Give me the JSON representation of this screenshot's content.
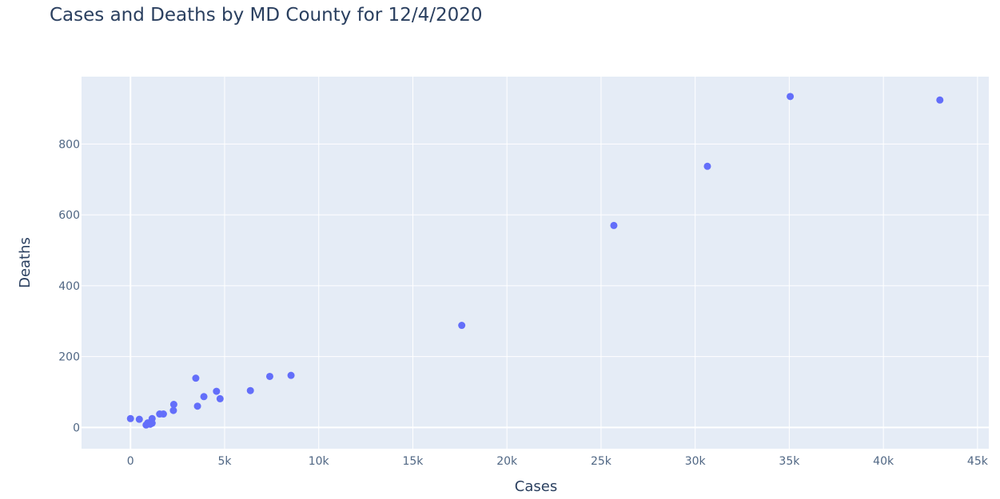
{
  "chart_data": {
    "type": "scatter",
    "title": "Cases and Deaths by MD County for 12/4/2020",
    "xlabel": "Cases",
    "ylabel": "Deaths",
    "xlim": [
      -2600,
      45600
    ],
    "ylim": [
      -60,
      990
    ],
    "x_ticks": [
      {
        "value": 0,
        "label": "0"
      },
      {
        "value": 5000,
        "label": "5k"
      },
      {
        "value": 10000,
        "label": "10k"
      },
      {
        "value": 15000,
        "label": "15k"
      },
      {
        "value": 20000,
        "label": "20k"
      },
      {
        "value": 25000,
        "label": "25k"
      },
      {
        "value": 30000,
        "label": "30k"
      },
      {
        "value": 35000,
        "label": "35k"
      },
      {
        "value": 40000,
        "label": "40k"
      },
      {
        "value": 45000,
        "label": "45k"
      }
    ],
    "y_ticks": [
      {
        "value": 0,
        "label": "0"
      },
      {
        "value": 200,
        "label": "200"
      },
      {
        "value": 400,
        "label": "400"
      },
      {
        "value": 600,
        "label": "600"
      },
      {
        "value": 800,
        "label": "800"
      }
    ],
    "grid": true,
    "marker_color": "#636efa",
    "plot_bg": "#e5ecf6",
    "points": [
      {
        "x": 0,
        "y": 25
      },
      {
        "x": 470,
        "y": 23
      },
      {
        "x": 830,
        "y": 7
      },
      {
        "x": 920,
        "y": 13
      },
      {
        "x": 1050,
        "y": 9
      },
      {
        "x": 1150,
        "y": 12
      },
      {
        "x": 1150,
        "y": 25
      },
      {
        "x": 1550,
        "y": 38
      },
      {
        "x": 1750,
        "y": 38
      },
      {
        "x": 2280,
        "y": 48
      },
      {
        "x": 2300,
        "y": 65
      },
      {
        "x": 3470,
        "y": 139
      },
      {
        "x": 3560,
        "y": 60
      },
      {
        "x": 3900,
        "y": 87
      },
      {
        "x": 4570,
        "y": 102
      },
      {
        "x": 4760,
        "y": 81
      },
      {
        "x": 6370,
        "y": 104
      },
      {
        "x": 7400,
        "y": 144
      },
      {
        "x": 8530,
        "y": 147
      },
      {
        "x": 17600,
        "y": 288
      },
      {
        "x": 25680,
        "y": 570
      },
      {
        "x": 30650,
        "y": 737
      },
      {
        "x": 35050,
        "y": 934
      },
      {
        "x": 43000,
        "y": 924
      }
    ]
  }
}
